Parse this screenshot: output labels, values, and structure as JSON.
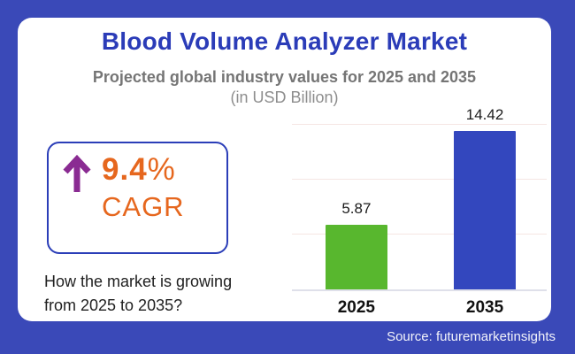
{
  "page": {
    "background_color": "#3a49b8",
    "card_color": "#ffffff"
  },
  "header": {
    "title": "Blood Volume Analyzer Market",
    "title_color": "#2b3cb8",
    "subtitle": "Projected global industry values for 2025 and 2035",
    "subtitle_unit": "(in USD Billion)"
  },
  "cagr": {
    "value": "9.4",
    "percent_sign": "%",
    "label": "CAGR",
    "arrow_icon": "up-arrow",
    "arrow_color": "#8a2b92",
    "text_color": "#e6671e",
    "border_color": "#2b3eb8"
  },
  "note": {
    "line1": "How the market is growing",
    "line2": "from 2025 to 2035?"
  },
  "footer": {
    "source": "Source: futuremarketinsights"
  },
  "chart_data": {
    "type": "bar",
    "title": "Blood Volume Analyzer Market",
    "subtitle": "Projected global industry values for 2025 and 2035 (in USD Billion)",
    "ylabel": "USD Billion",
    "categories": [
      "2025",
      "2035"
    ],
    "values": [
      5.87,
      14.42
    ],
    "value_labels": [
      "5.87",
      "14.42"
    ],
    "bar_colors": [
      "#58b72e",
      "#3347be"
    ],
    "ylim": [
      0,
      15
    ],
    "gridline_values": [
      5,
      10,
      15
    ],
    "grid": "horizontal, unlabeled ticks",
    "legend": "none"
  }
}
